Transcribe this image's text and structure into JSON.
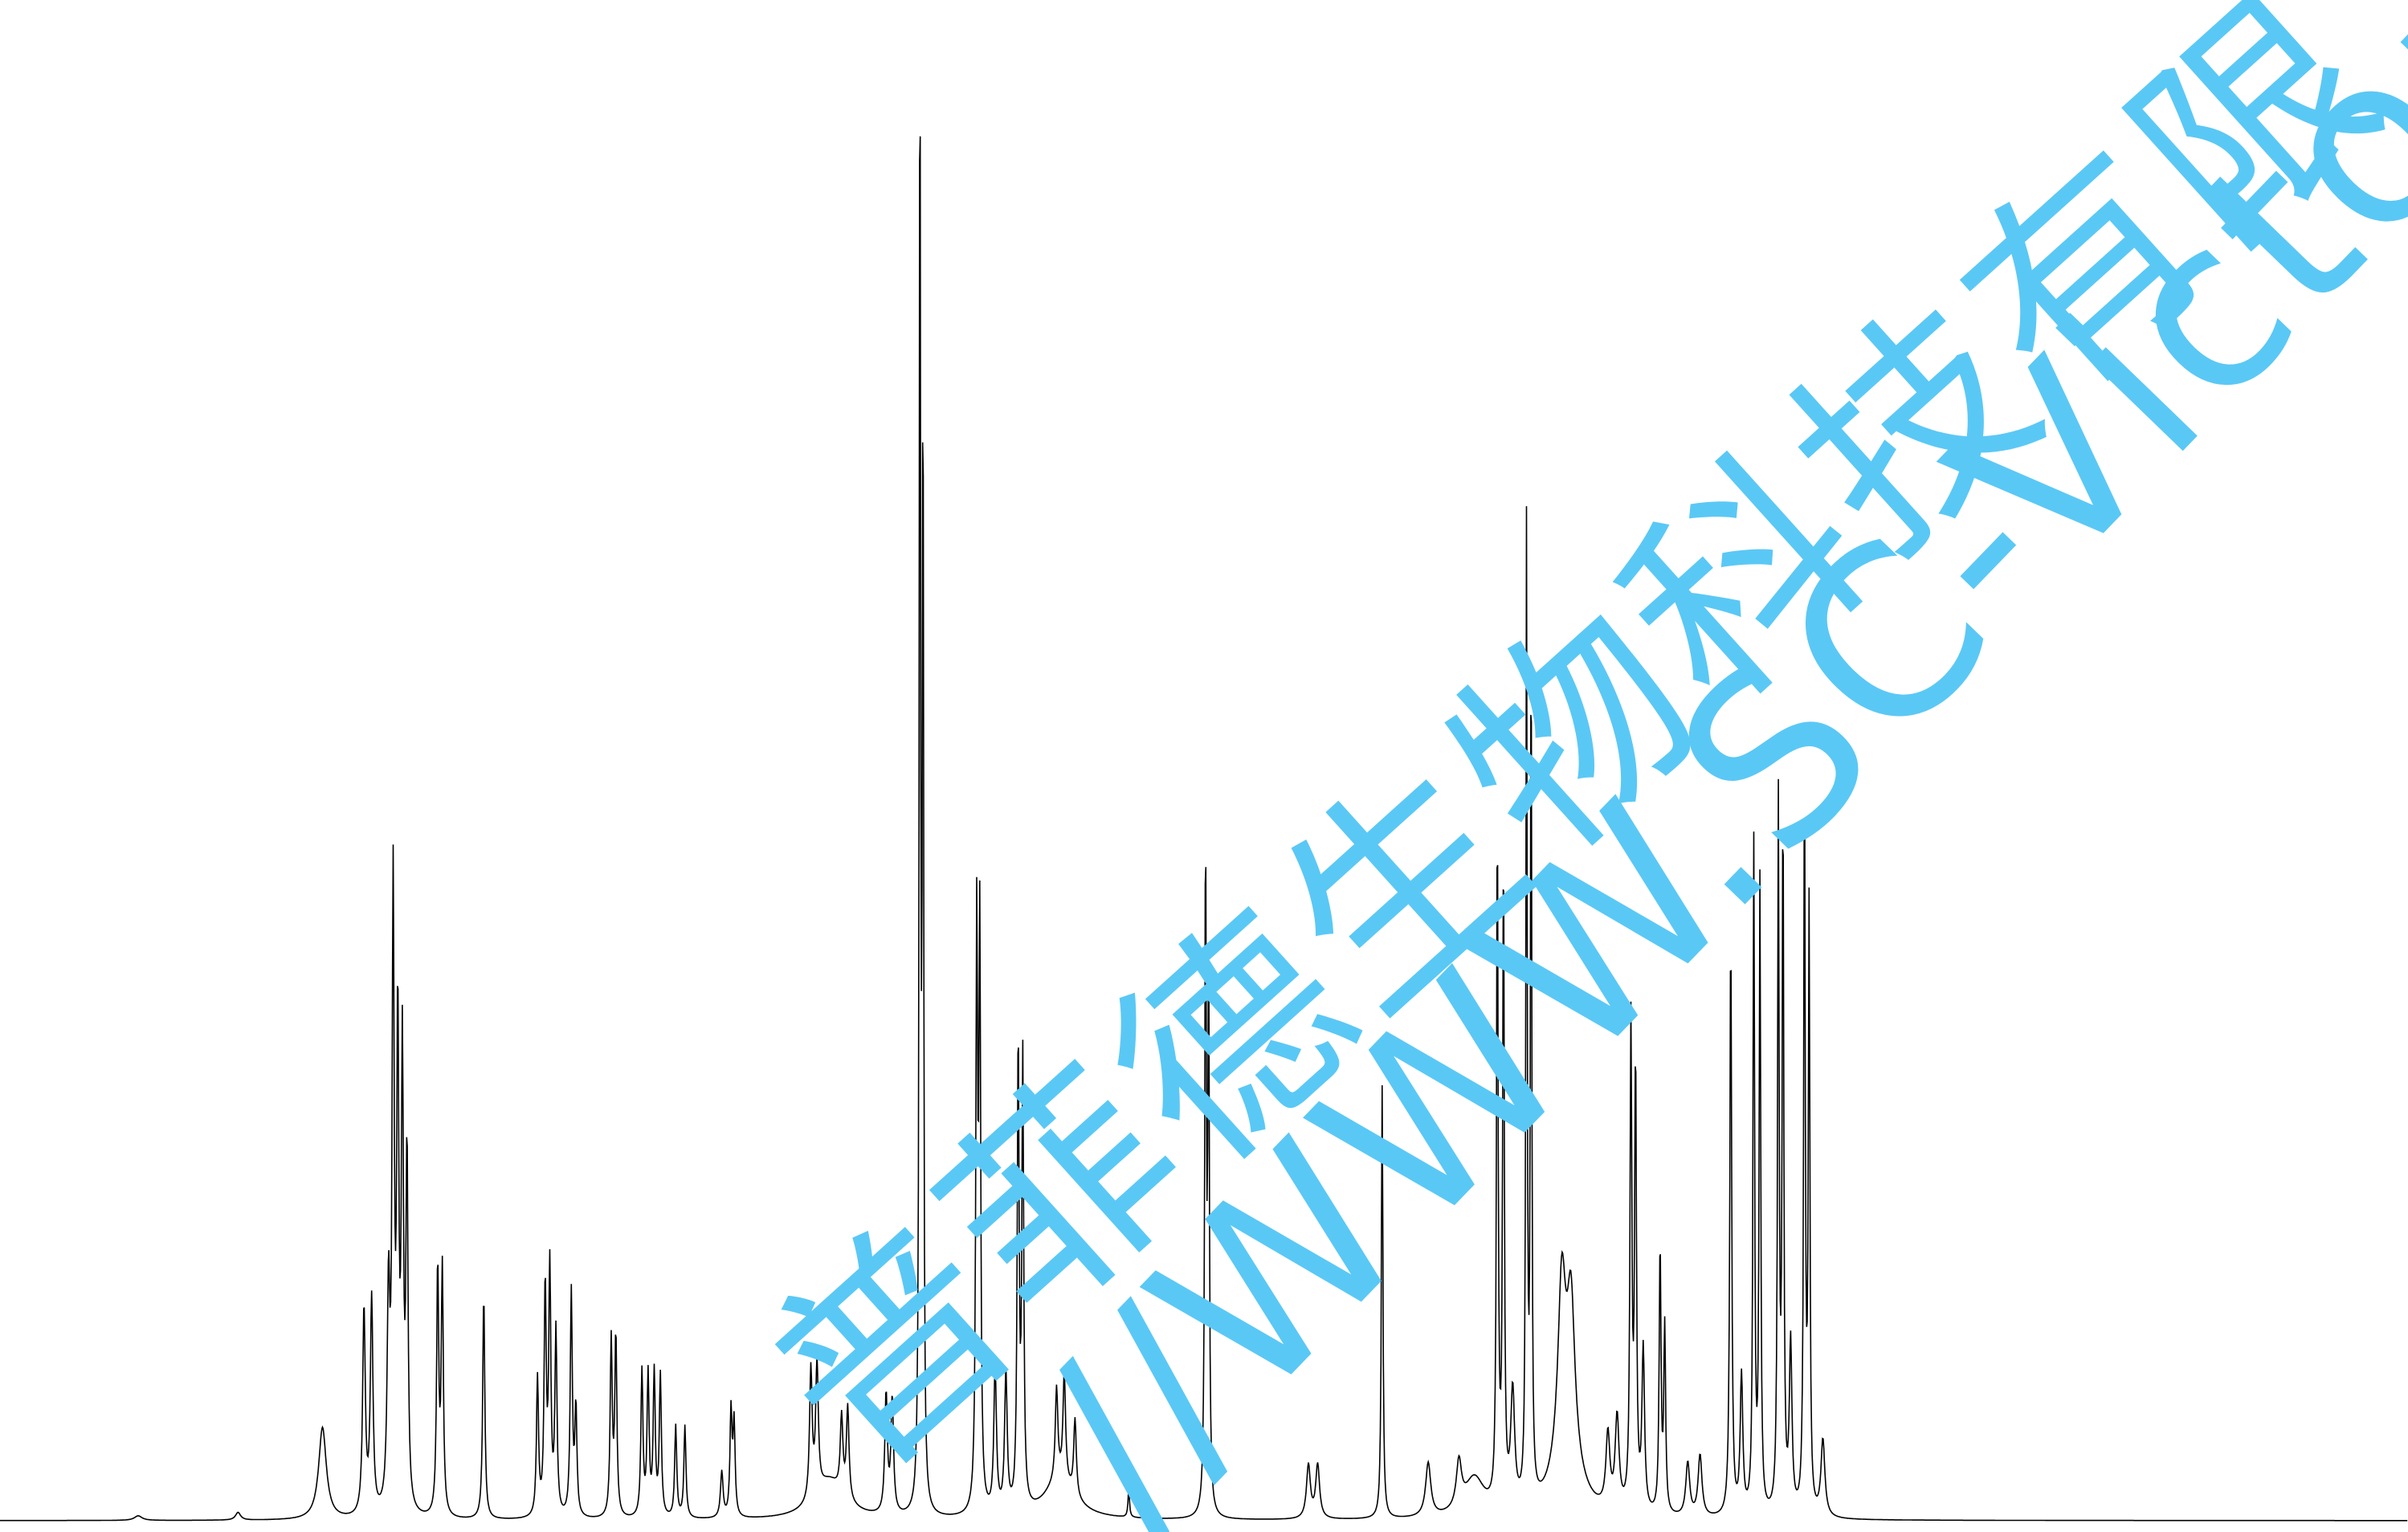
{
  "watermark": {
    "company": "普菲德生物科技有限",
    "url": "//WWW.SC-Victor"
  }
}
